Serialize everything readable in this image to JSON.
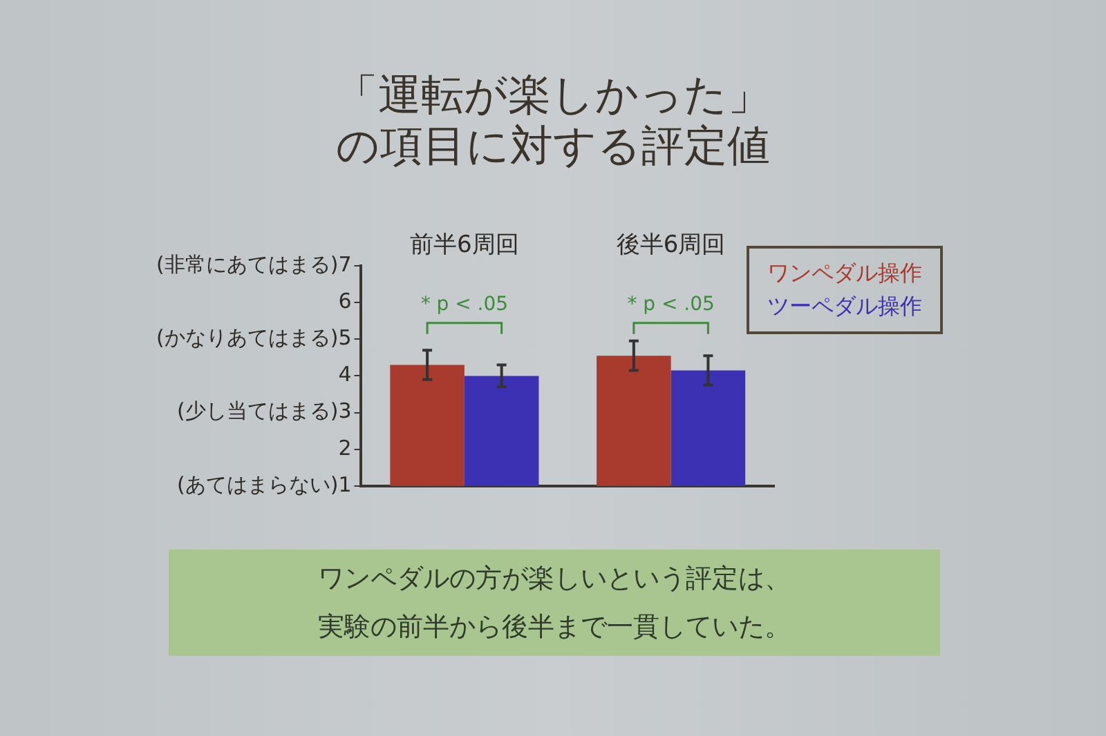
{
  "chart_data": {
    "type": "bar",
    "title": "「運転が楽しかった」の項目に対する評定値",
    "categories": [
      "前半6周回",
      "後半6周回"
    ],
    "series": [
      {
        "name": "ワンペダル操作",
        "color": "#a93a2e",
        "values": [
          4.3,
          4.55
        ],
        "errors": [
          0.4,
          0.4
        ]
      },
      {
        "name": "ツーペダル操作",
        "color": "#3c31b2",
        "values": [
          4.0,
          4.15
        ],
        "errors": [
          0.3,
          0.4
        ]
      }
    ],
    "ylim": [
      1,
      7
    ],
    "yticks": [
      {
        "value": 1,
        "label": "(あてはまらない)1"
      },
      2,
      {
        "value": 3,
        "label": "(少し当てはまる)3"
      },
      4,
      {
        "value": 5,
        "label": "(かなりあてはまる)5"
      },
      6,
      {
        "value": 7,
        "label": "(非常にあてはまる)7"
      }
    ],
    "grid": false,
    "legend": "top right",
    "annotations": [
      "* p < .05",
      "* p < .05",
      "ワンペダルの方が楽しいという評定は、実験の前半から後半まで一貫していた。"
    ]
  }
}
